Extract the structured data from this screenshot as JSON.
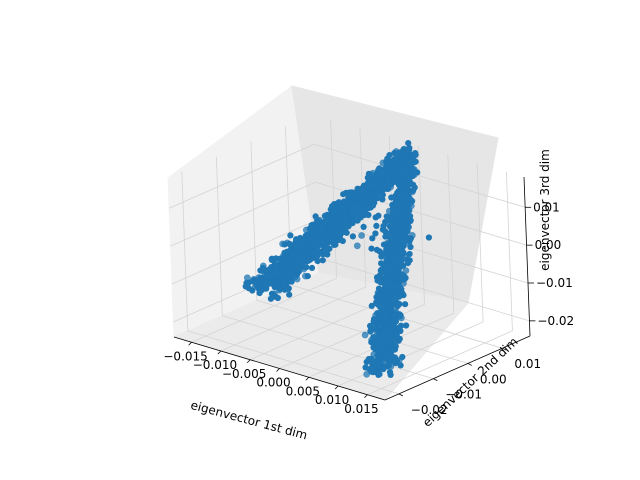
{
  "chart_data": {
    "type": "scatter",
    "projection": "3d",
    "title": "",
    "xlabel": "eigenvector 1st dim",
    "ylabel": "eigenvector 2nd dim",
    "zlabel": "eigenvector 3rd dim",
    "xlim": [
      -0.018,
      0.018
    ],
    "ylim": [
      -0.024,
      0.018
    ],
    "zlim": [
      -0.024,
      0.018
    ],
    "xticks": [
      "−0.015",
      "−0.010",
      "−0.005",
      "0.000",
      "0.005",
      "0.010",
      "0.015"
    ],
    "xtick_values": [
      -0.015,
      -0.01,
      -0.005,
      0.0,
      0.005,
      0.01,
      0.015
    ],
    "yticks": [
      "−0.02",
      "−0.01",
      "0.00",
      "0.01"
    ],
    "ytick_values": [
      -0.02,
      -0.01,
      0.0,
      0.01
    ],
    "zticks": [
      "−0.02",
      "−0.01",
      "0.00",
      "0.01"
    ],
    "ztick_values": [
      -0.02,
      -0.01,
      0.0,
      0.01
    ],
    "grid": true,
    "marker_color": "#1f77b4",
    "series": [
      {
        "description_points": "dense point cloud forming an inverted-V ridge; apex and the two arm ends of the ridge",
        "x": [
          -0.0155,
          0.0005,
          0.0155
        ],
        "y": [
          -0.002,
          0.014,
          -0.021
        ],
        "z": [
          -0.019,
          0.017,
          -0.019
        ]
      }
    ]
  }
}
